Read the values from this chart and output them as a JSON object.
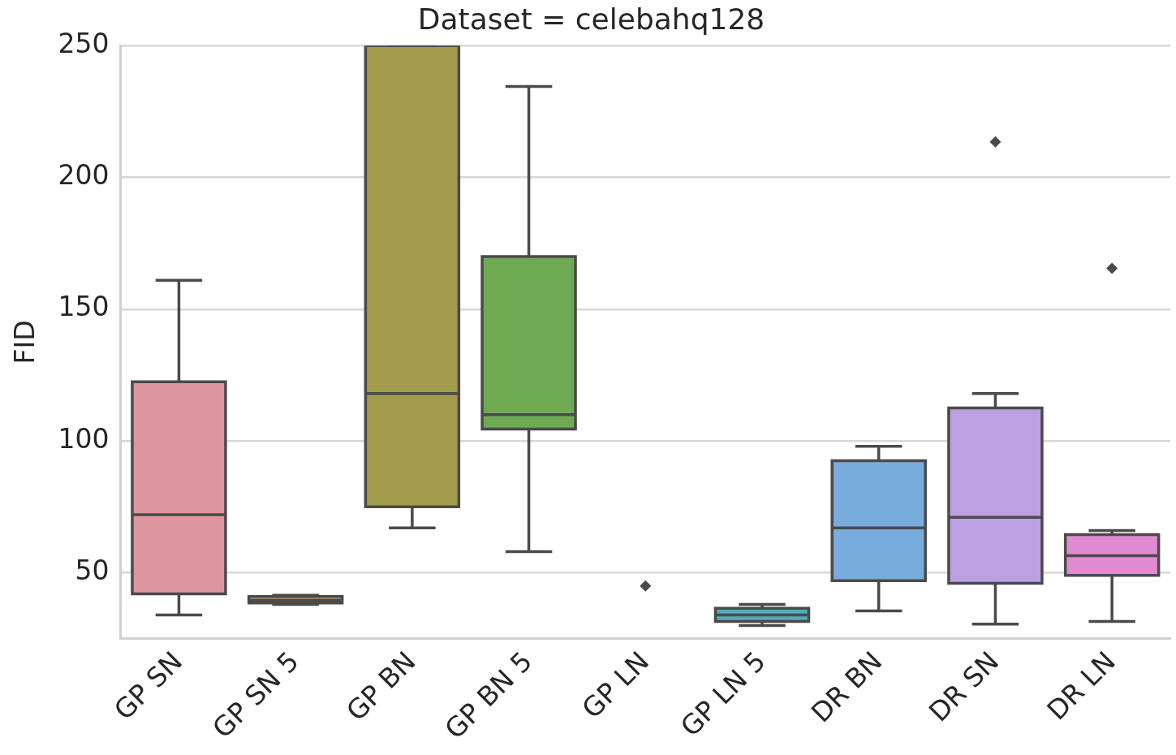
{
  "chart_data": {
    "type": "box",
    "title": "Dataset = celebahq128",
    "ylabel": "FID",
    "categories": [
      "GP SN",
      "GP SN 5",
      "GP BN",
      "GP BN 5",
      "GP LN",
      "GP LN 5",
      "DR BN",
      "DR SN",
      "DR LN"
    ],
    "colors": [
      "#dd95a0",
      "#c99a6a",
      "#a29c4c",
      "#6faa52",
      "#56ae8f",
      "#4fadb5",
      "#78acdd",
      "#bda0e2",
      "#e08ad0"
    ],
    "boxes": [
      {
        "low": 34,
        "q1": 42,
        "median": 72,
        "q3": 122.5,
        "high": 161
      },
      {
        "low": 38,
        "q1": 38.5,
        "median": 39.5,
        "q3": 41,
        "high": 41.5
      },
      {
        "low": 67,
        "q1": 75,
        "median": 118,
        "q3": 250,
        "high": 250
      },
      {
        "low": 58,
        "q1": 104.5,
        "median": 110,
        "q3": 170,
        "high": 234.5
      },
      null,
      {
        "low": 30,
        "q1": 31.5,
        "median": 34,
        "q3": 36.5,
        "high": 38
      },
      {
        "low": 35.5,
        "q1": 47,
        "median": 67,
        "q3": 92.5,
        "high": 98
      },
      {
        "low": 30.5,
        "q1": 46,
        "median": 71,
        "q3": 112.5,
        "high": 118,
        "outliers": [
          213.5
        ]
      },
      {
        "low": 31.5,
        "q1": 49,
        "median": 56.5,
        "q3": 64.5,
        "high": 66,
        "outliers": [
          165.5
        ]
      }
    ],
    "series": [
      {
        "type": "scatter",
        "x": [
          "GP LN"
        ],
        "values": [
          45
        ],
        "color": "#4a4a4a",
        "marker": "diamond"
      }
    ],
    "ylim": [
      25,
      250
    ],
    "yticks": [
      50,
      100,
      150,
      200,
      250
    ],
    "grid": "y",
    "legend": false
  }
}
